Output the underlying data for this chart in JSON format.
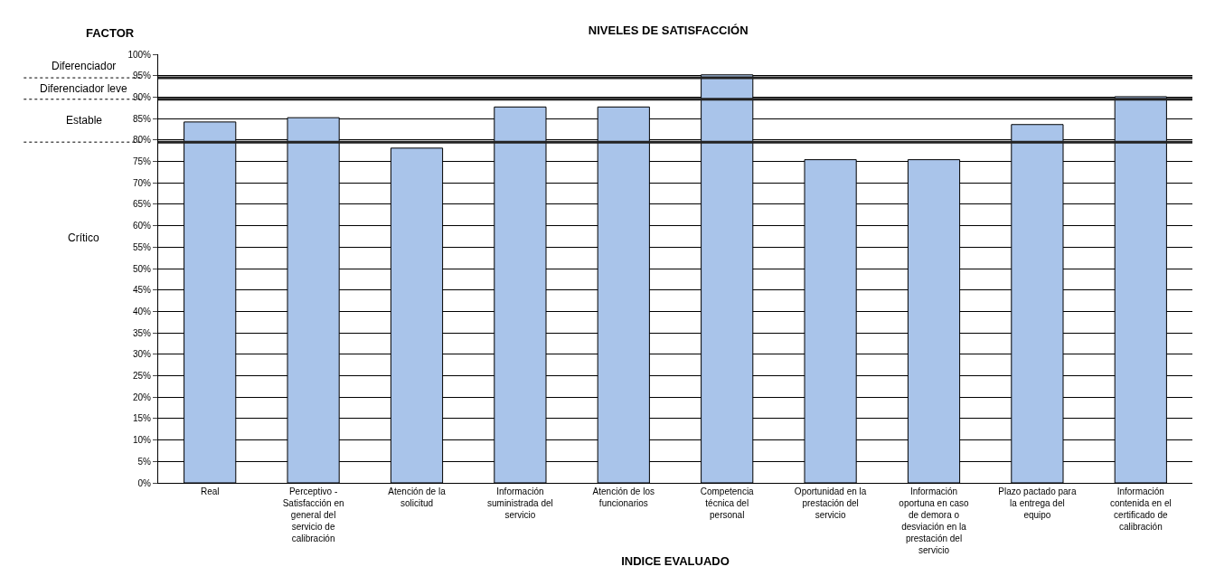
{
  "chart_data": {
    "type": "bar",
    "title": "NIVELES DE SATISFACCIÓN",
    "xlabel": "INDICE EVALUADO",
    "annotations": [
      "FACTOR",
      "Diferenciador",
      "Diferenciador leve",
      "Estable",
      "Crítico"
    ],
    "categories": [
      "Real",
      "Perceptivo - Satisfacción en general del servicio de calibración",
      "Atención de la solicitud",
      "Información suministrada del servicio",
      "Atención de los funcionarios",
      "Competencia técnica del personal",
      "Oportunidad en la prestación del servicio",
      "Información oportuna en caso de demora o desviación en la prestación del servicio",
      "Plazo pactado para la entrega del equipo",
      "Información contenida en el certificado de calibración"
    ],
    "values": [
      84.2,
      85.2,
      78.1,
      87.7,
      87.7,
      95.2,
      75.4,
      75.4,
      83.6,
      90.1
    ],
    "color": "#a9c4ea",
    "ylim": [
      0,
      100
    ],
    "yticks": [
      {
        "value": 0,
        "label": "0%"
      },
      {
        "value": 5,
        "label": "5%"
      },
      {
        "value": 10,
        "label": "10%"
      },
      {
        "value": 15,
        "label": "15%"
      },
      {
        "value": 20,
        "label": "20%"
      },
      {
        "value": 25,
        "label": "25%"
      },
      {
        "value": 30,
        "label": "30%"
      },
      {
        "value": 35,
        "label": "35%"
      },
      {
        "value": 40,
        "label": "40%"
      },
      {
        "value": 45,
        "label": "45%"
      },
      {
        "value": 50,
        "label": "50%"
      },
      {
        "value": 55,
        "label": "55%"
      },
      {
        "value": 60,
        "label": "60%"
      },
      {
        "value": 65,
        "label": "65%"
      },
      {
        "value": 70,
        "label": "70%"
      },
      {
        "value": 75,
        "label": "75%"
      },
      {
        "value": 80,
        "label": "80%"
      },
      {
        "value": 85,
        "label": "85%"
      },
      {
        "value": 90,
        "label": "90%"
      },
      {
        "value": 95,
        "label": "95%"
      },
      {
        "value": 100,
        "label": "100%"
      }
    ],
    "grid": "y",
    "ref_lines": [
      {
        "axis": "y",
        "value": 94.5,
        "color": "#222222"
      },
      {
        "axis": "y",
        "value": 89.5,
        "color": "#222222"
      },
      {
        "axis": "y",
        "value": 79.5,
        "color": "#222222"
      }
    ]
  }
}
